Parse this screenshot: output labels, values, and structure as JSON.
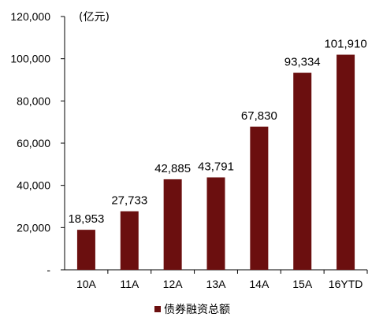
{
  "chart_data": {
    "type": "bar",
    "categories": [
      "10A",
      "11A",
      "12A",
      "13A",
      "14A",
      "15A",
      "16YTD"
    ],
    "series": [
      {
        "name": "债券融资总额",
        "values": [
          18953,
          27733,
          42885,
          43791,
          67830,
          93334,
          101910
        ],
        "data_labels": [
          "18,953",
          "27,733",
          "42,885",
          "43,791",
          "67,830",
          "93,334",
          "101,910"
        ],
        "color": "#6b0f0f"
      }
    ],
    "unit_label": "(亿元)",
    "y_ticks": [
      "-",
      "20,000",
      "40,000",
      "60,000",
      "80,000",
      "100,000",
      "120,000"
    ],
    "y_tick_values": [
      0,
      20000,
      40000,
      60000,
      80000,
      100000,
      120000
    ],
    "ylim": [
      0,
      120000
    ],
    "grid": false,
    "legend_position": "bottom"
  }
}
